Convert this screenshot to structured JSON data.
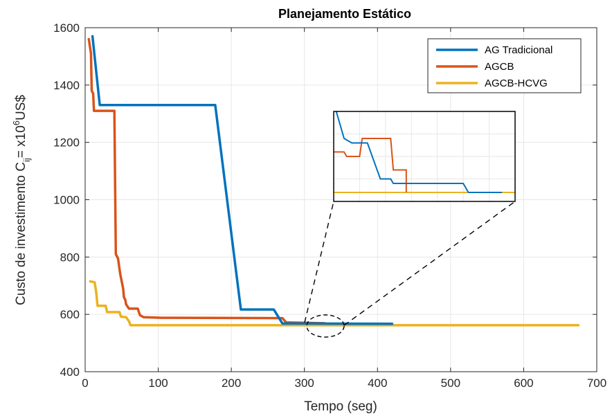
{
  "chart_data": {
    "type": "line",
    "title": "Planejamento Estático",
    "xlabel": "Tempo (seg)",
    "ylabel": {
      "prefix": "Custo de investimento C",
      "sub": "ij",
      "mid": "= x10",
      "sup": "6",
      "suffix": "US$"
    },
    "xlim": [
      0,
      700
    ],
    "ylim": [
      400,
      1600
    ],
    "xticks": [
      0,
      100,
      200,
      300,
      400,
      500,
      600,
      700
    ],
    "yticks": [
      400,
      600,
      800,
      1000,
      1200,
      1400,
      1600
    ],
    "grid": true,
    "legend_position": "top-right",
    "series": [
      {
        "name": "AG Tradicional",
        "color": "#0072BD",
        "points": [
          [
            10,
            1570
          ],
          [
            20,
            1330
          ],
          [
            178,
            1330
          ],
          [
            213,
            617
          ],
          [
            258,
            617
          ],
          [
            270,
            568
          ],
          [
            300,
            568
          ],
          [
            420,
            567
          ]
        ]
      },
      {
        "name": "AGCB",
        "color": "#D95319",
        "points": [
          [
            5,
            1560
          ],
          [
            8,
            1510
          ],
          [
            9,
            1380
          ],
          [
            11,
            1370
          ],
          [
            12,
            1310
          ],
          [
            40,
            1310
          ],
          [
            42,
            810
          ],
          [
            45,
            795
          ],
          [
            48,
            740
          ],
          [
            52,
            690
          ],
          [
            53,
            660
          ],
          [
            55,
            650
          ],
          [
            56,
            635
          ],
          [
            60,
            620
          ],
          [
            72,
            620
          ],
          [
            75,
            597
          ],
          [
            80,
            590
          ],
          [
            105,
            588
          ],
          [
            270,
            587
          ],
          [
            275,
            572
          ],
          [
            328,
            569
          ]
        ]
      },
      {
        "name": "AGCB-HCVG",
        "color": "#EDB120",
        "points": [
          [
            7,
            715
          ],
          [
            13,
            712
          ],
          [
            15,
            680
          ],
          [
            17,
            630
          ],
          [
            28,
            630
          ],
          [
            30,
            608
          ],
          [
            47,
            608
          ],
          [
            49,
            592
          ],
          [
            56,
            590
          ],
          [
            60,
            576
          ],
          [
            62,
            562
          ],
          [
            675,
            562
          ]
        ]
      }
    ],
    "inset": {
      "xlim": [
        290,
        360
      ],
      "ylim": [
        560,
        580
      ],
      "series": [
        {
          "name": "AG Tradicional",
          "points": [
            [
              291,
              580
            ],
            [
              294,
              574
            ],
            [
              297,
              573
            ],
            [
              303,
              573
            ],
            [
              308,
              565
            ],
            [
              312,
              565
            ],
            [
              313,
              564
            ],
            [
              340,
              564
            ],
            [
              342,
              562
            ],
            [
              355,
              562
            ]
          ]
        },
        {
          "name": "AGCB",
          "points": [
            [
              290,
              571
            ],
            [
              294,
              571
            ],
            [
              295,
              570
            ],
            [
              300,
              570
            ],
            [
              301,
              574
            ],
            [
              312,
              574
            ],
            [
              313,
              567
            ],
            [
              318,
              567
            ],
            [
              318,
              562
            ]
          ]
        },
        {
          "name": "AGCB-HCVG",
          "points": [
            [
              290,
              562
            ],
            [
              360,
              562
            ]
          ]
        }
      ]
    }
  }
}
